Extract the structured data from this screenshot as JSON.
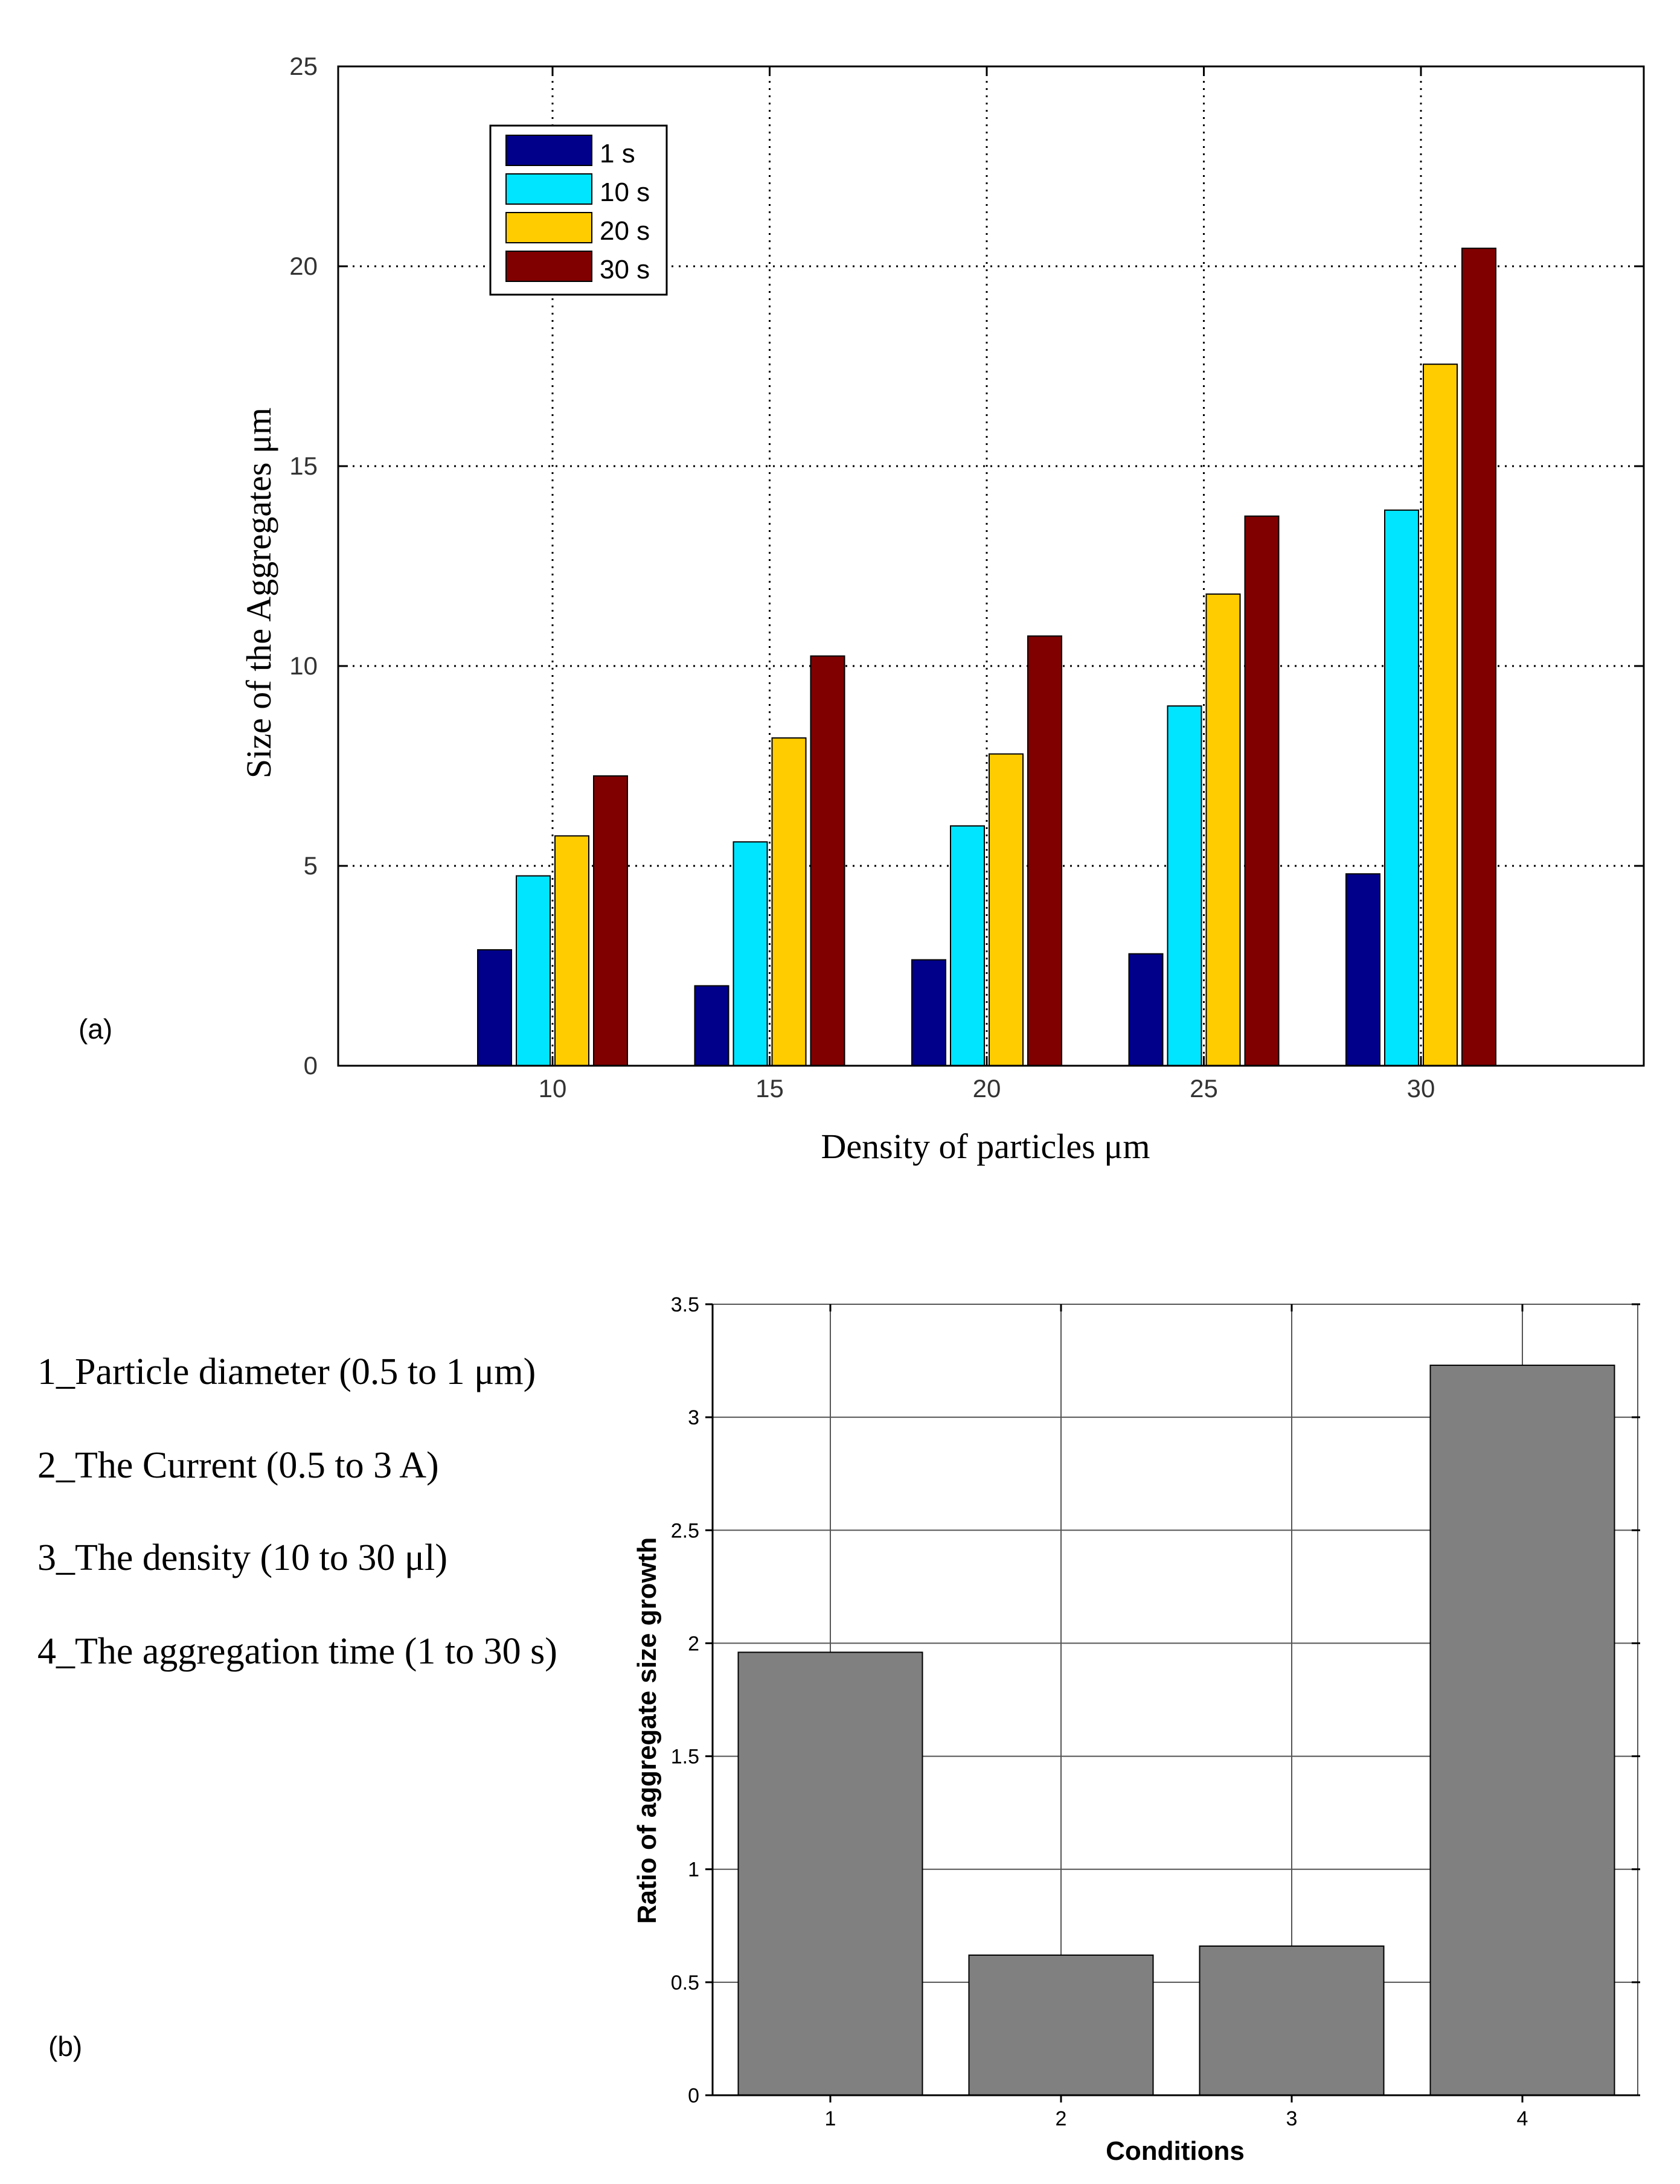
{
  "chart_data": [
    {
      "panel_label": "(a)",
      "type": "bar",
      "title": "",
      "xlabel": "Density of particles μm",
      "ylabel": "Size of the Aggregates μm",
      "categories": [
        "10",
        "15",
        "20",
        "25",
        "30"
      ],
      "ylim": [
        0,
        25
      ],
      "yticks": [
        "0",
        "5",
        "10",
        "15",
        "20",
        "25"
      ],
      "grid": true,
      "legend_position": "top-left",
      "series": [
        {
          "name": "1 s",
          "color": "#00008b",
          "values": [
            2.9,
            2.0,
            2.65,
            2.8,
            4.8
          ]
        },
        {
          "name": "10 s",
          "color": "#00e5ff",
          "values": [
            4.75,
            5.6,
            6.0,
            9.0,
            13.9
          ]
        },
        {
          "name": "20 s",
          "color": "#ffcc00",
          "values": [
            5.75,
            8.2,
            7.8,
            11.8,
            17.55
          ]
        },
        {
          "name": "30 s",
          "color": "#800000",
          "values": [
            7.25,
            10.25,
            10.75,
            13.75,
            20.45
          ]
        }
      ]
    },
    {
      "panel_label": "(b)",
      "type": "bar",
      "title": "",
      "xlabel": "Conditions",
      "ylabel": "Ratio of aggregate size growth",
      "categories": [
        "1",
        "2",
        "3",
        "4"
      ],
      "values": [
        1.96,
        0.62,
        0.66,
        3.23
      ],
      "ylim": [
        0,
        3.5
      ],
      "yticks": [
        "0",
        "0.5",
        "1",
        "1.5",
        "2",
        "2.5",
        "3",
        "3.5"
      ],
      "grid": true,
      "bar_color": "#808080",
      "conditions_list": [
        "1_Particle diameter (0.5 to 1 μm)",
        "2_The Current (0.5 to 3 A)",
        "3_The density (10 to 30 μl)",
        "4_The aggregation time (1 to 30 s)"
      ]
    }
  ]
}
